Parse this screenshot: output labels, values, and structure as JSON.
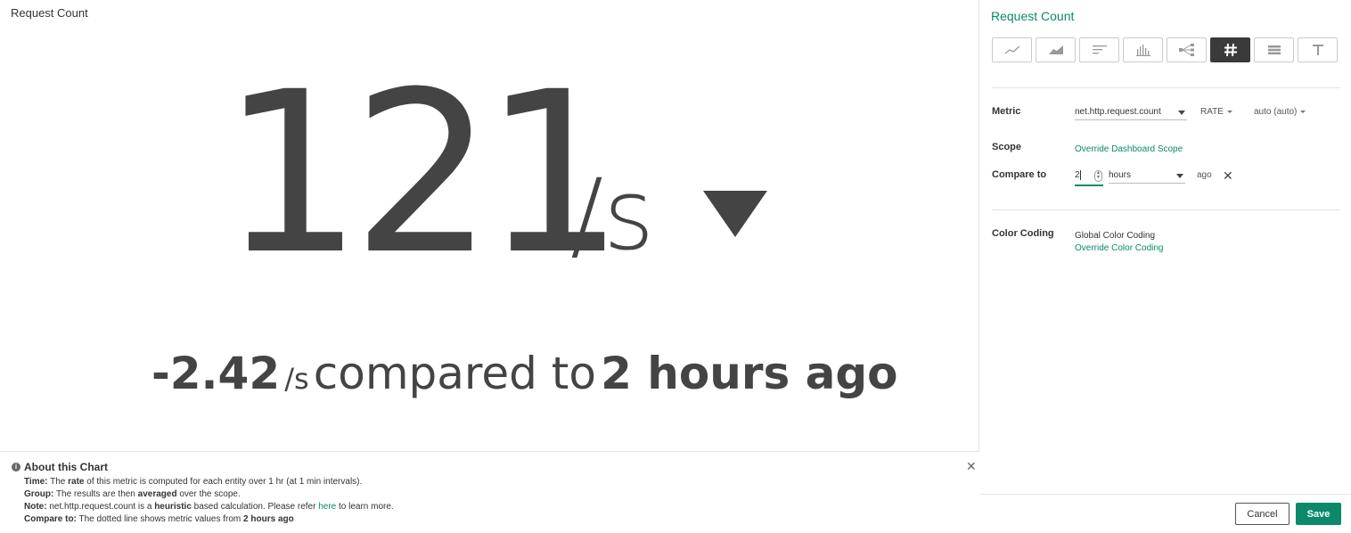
{
  "chart": {
    "title": "Request Count",
    "value": "121",
    "unit": "/s",
    "trend_icon": "triangle-down-icon",
    "delta": "-2.42",
    "delta_unit": "/s",
    "compare_text": "compared to",
    "compare_period": "2 hours ago"
  },
  "about": {
    "title": "About this Chart",
    "info_icon": "info-icon",
    "close_icon": "close-icon",
    "time_label": "Time:",
    "time_pre": "The",
    "time_bold": "rate",
    "time_post": "of this metric is computed for each entity over 1 hr (at 1 min intervals).",
    "group_label": "Group:",
    "group_pre": "The results are then",
    "group_bold": "averaged",
    "group_post": "over the scope.",
    "note_label": "Note:",
    "note_pre": "net.http.request.count is a",
    "note_bold": "heuristic",
    "note_mid": "based calculation. Please refer",
    "note_link": "here",
    "note_post": "to learn more.",
    "compare_label": "Compare to:",
    "compare_pre": "The dotted line shows metric values from",
    "compare_bold": "2 hours ago"
  },
  "panel": {
    "title": "Request Count",
    "chart_types": [
      {
        "name": "line-chart-icon",
        "active": false
      },
      {
        "name": "area-chart-icon",
        "active": false
      },
      {
        "name": "bar-chart-icon",
        "active": false
      },
      {
        "name": "histogram-icon",
        "active": false
      },
      {
        "name": "topology-icon",
        "active": false
      },
      {
        "name": "number-icon",
        "active": true
      },
      {
        "name": "table-icon",
        "active": false
      },
      {
        "name": "text-icon",
        "active": false
      }
    ],
    "metric_label": "Metric",
    "metric_value": "net.http.request.count",
    "aggregation": "RATE",
    "resolution": "auto (auto)",
    "scope_label": "Scope",
    "scope_link": "Override Dashboard Scope",
    "compare_label": "Compare to",
    "compare_amount": "2",
    "compare_unit": "hours",
    "compare_suffix": "ago",
    "color_label": "Color Coding",
    "color_value": "Global Color Coding",
    "color_link": "Override Color Coding",
    "cancel_label": "Cancel",
    "save_label": "Save"
  },
  "colors": {
    "accent": "#0a8a6a",
    "text_dark": "#444444"
  }
}
